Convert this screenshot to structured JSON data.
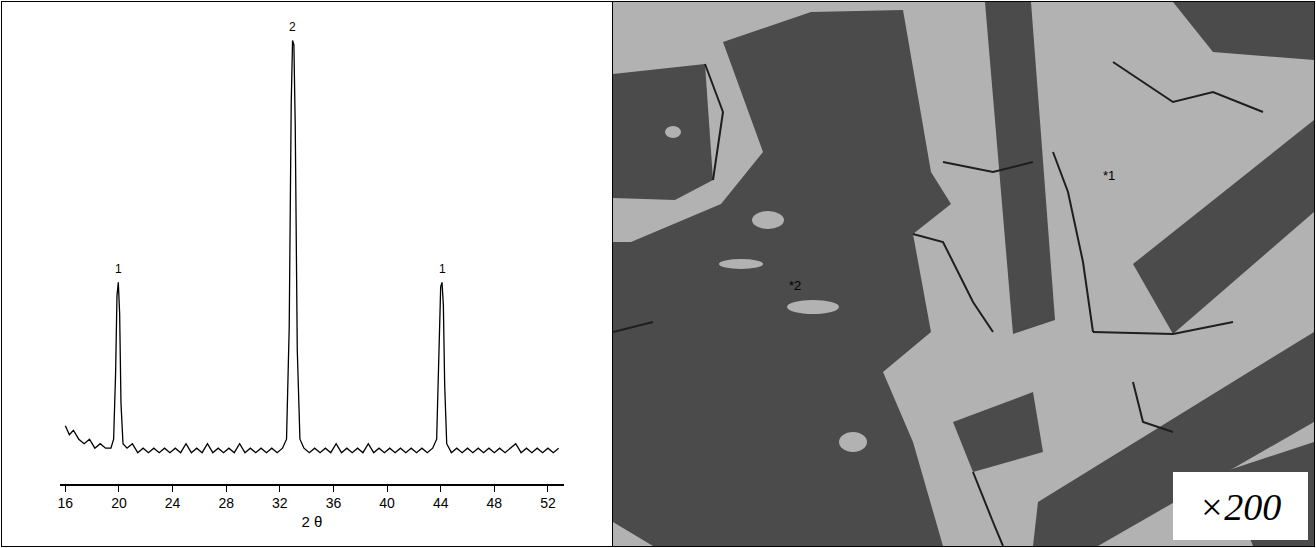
{
  "chart_data": {
    "type": "line",
    "color": "#000000",
    "grid": false,
    "tick_labels": "x",
    "x_label": "2 θ",
    "xlim": [
      15.6,
      53.2
    ],
    "xticks": [
      16,
      20,
      24,
      28,
      32,
      36,
      40,
      44,
      48,
      52
    ],
    "ylim": [
      0,
      100
    ],
    "x": [
      16.0,
      16.3,
      16.6,
      17.0,
      17.4,
      17.8,
      18.2,
      18.6,
      19.0,
      19.4,
      19.6,
      19.75,
      19.85,
      19.95,
      20.05,
      20.15,
      20.3,
      20.6,
      21.0,
      21.4,
      21.8,
      22.2,
      22.6,
      23.0,
      23.4,
      23.8,
      24.2,
      24.6,
      25.0,
      25.4,
      25.8,
      26.2,
      26.6,
      27.0,
      27.4,
      27.8,
      28.2,
      28.6,
      29.0,
      29.4,
      29.8,
      30.2,
      30.6,
      31.0,
      31.4,
      31.8,
      32.2,
      32.5,
      32.7,
      32.85,
      32.95,
      33.05,
      33.15,
      33.3,
      33.5,
      33.8,
      34.2,
      34.6,
      35.0,
      35.4,
      35.8,
      36.2,
      36.6,
      37.0,
      37.4,
      37.8,
      38.2,
      38.6,
      39.0,
      39.4,
      39.8,
      40.2,
      40.6,
      41.0,
      41.4,
      41.8,
      42.2,
      42.6,
      43.0,
      43.4,
      43.7,
      43.9,
      44.0,
      44.1,
      44.2,
      44.3,
      44.45,
      44.8,
      45.2,
      45.6,
      46.0,
      46.4,
      46.8,
      47.2,
      47.6,
      48.0,
      48.4,
      48.8,
      49.2,
      49.6,
      50.0,
      50.4,
      50.8,
      51.2,
      51.6,
      52.0,
      52.4,
      52.8
    ],
    "values": [
      13,
      11,
      12,
      10,
      9,
      10,
      8,
      9,
      8,
      8,
      10,
      25,
      42,
      45,
      38,
      18,
      9,
      8,
      9,
      7,
      8,
      7,
      8,
      7,
      8,
      7,
      8,
      7,
      9,
      7,
      8,
      7,
      9,
      7,
      8,
      7,
      8,
      7,
      9,
      7,
      8,
      7,
      8,
      7,
      8,
      7,
      8,
      10,
      35,
      85,
      99,
      98,
      80,
      30,
      10,
      8,
      7,
      8,
      7,
      8,
      7,
      9,
      7,
      8,
      7,
      8,
      7,
      9,
      7,
      8,
      7,
      8,
      7,
      8,
      7,
      8,
      7,
      8,
      7,
      8,
      10,
      30,
      44,
      45,
      40,
      22,
      9,
      7,
      8,
      7,
      8,
      7,
      8,
      7,
      8,
      7,
      8,
      7,
      8,
      9,
      7,
      8,
      7,
      8,
      7,
      8,
      7,
      8
    ],
    "annotations": [
      {
        "x": 19.95,
        "y": 45,
        "text": "1"
      },
      {
        "x": 32.95,
        "y": 99,
        "text": "2"
      },
      {
        "x": 44.1,
        "y": 45,
        "text": "1"
      }
    ]
  },
  "micrograph": {
    "points": [
      "*1",
      "*2"
    ],
    "magnification": "×200"
  }
}
